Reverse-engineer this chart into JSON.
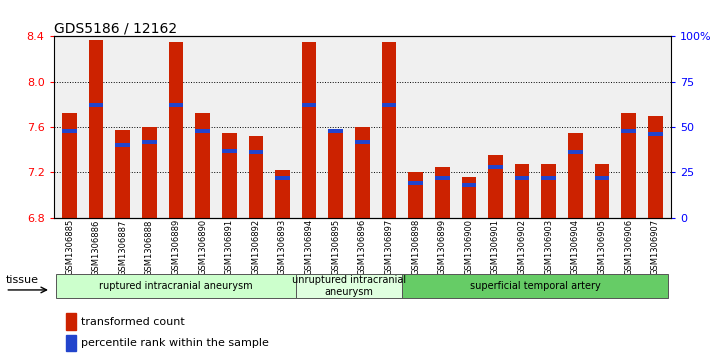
{
  "title": "GDS5186 / 12162",
  "samples": [
    "GSM1306885",
    "GSM1306886",
    "GSM1306887",
    "GSM1306888",
    "GSM1306889",
    "GSM1306890",
    "GSM1306891",
    "GSM1306892",
    "GSM1306893",
    "GSM1306894",
    "GSM1306895",
    "GSM1306896",
    "GSM1306897",
    "GSM1306898",
    "GSM1306899",
    "GSM1306900",
    "GSM1306901",
    "GSM1306902",
    "GSM1306903",
    "GSM1306904",
    "GSM1306905",
    "GSM1306906",
    "GSM1306907"
  ],
  "transformed_count": [
    7.72,
    8.37,
    7.57,
    7.6,
    8.35,
    7.72,
    7.55,
    7.52,
    7.22,
    8.35,
    7.57,
    7.6,
    8.35,
    7.2,
    7.25,
    7.16,
    7.35,
    7.27,
    7.27,
    7.55,
    7.27,
    7.72,
    7.7
  ],
  "percentile_rank": [
    48,
    62,
    40,
    42,
    62,
    48,
    37,
    36,
    22,
    62,
    48,
    42,
    62,
    19,
    22,
    18,
    28,
    22,
    22,
    36,
    22,
    48,
    46
  ],
  "ymin": 6.8,
  "ymax": 8.4,
  "yticks": [
    6.8,
    7.2,
    7.6,
    8.0,
    8.4
  ],
  "right_yticks": [
    0,
    25,
    50,
    75,
    100
  ],
  "right_ytick_labels": [
    "0",
    "25",
    "50",
    "75",
    "100%"
  ],
  "groups": [
    {
      "label": "ruptured intracranial aneurysm",
      "start": 0,
      "end": 9,
      "color": "#ccffcc"
    },
    {
      "label": "unruptured intracranial\naneurysm",
      "start": 9,
      "end": 13,
      "color": "#dfffdf"
    },
    {
      "label": "superficial temporal artery",
      "start": 13,
      "end": 23,
      "color": "#66cc66"
    }
  ],
  "bar_color": "#cc2200",
  "percentile_color": "#2244cc",
  "bar_width": 0.55,
  "background_color": "#f0f0f0",
  "legend_items": [
    {
      "label": "transformed count",
      "color": "#cc2200"
    },
    {
      "label": "percentile rank within the sample",
      "color": "#2244cc"
    }
  ],
  "tissue_label": "tissue"
}
